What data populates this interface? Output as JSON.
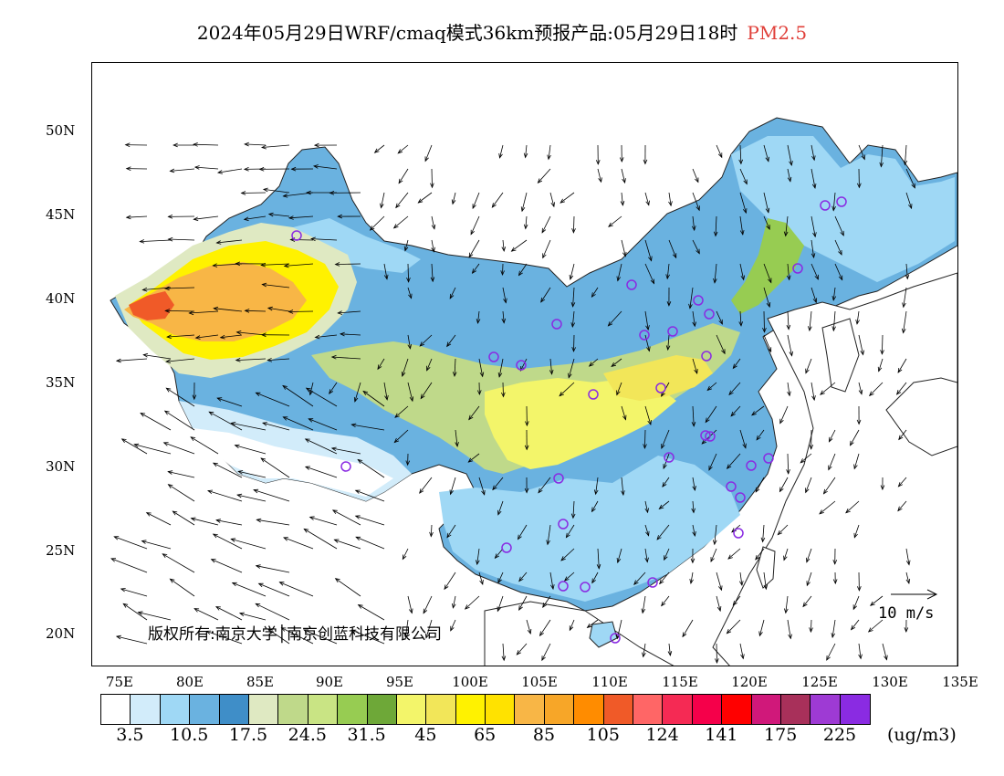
{
  "title": {
    "main": "2024年05月29日WRF/cmaq模式36km预报产品:05月29日18时",
    "variable": "PM2.5"
  },
  "axes": {
    "lat_labels": [
      "50N",
      "45N",
      "40N",
      "35N",
      "30N",
      "25N",
      "20N"
    ],
    "lon_labels": [
      "75E",
      "80E",
      "85E",
      "90E",
      "95E",
      "100E",
      "105E",
      "110E",
      "115E",
      "120E",
      "125E",
      "130E",
      "135E"
    ]
  },
  "copyright": "版权所有:南京大学│南京创蓝科技有限公司",
  "wind_reference": "10 m/s",
  "colorbar": {
    "colors": [
      "#ffffff",
      "#d2ecfa",
      "#9fd8f5",
      "#6ab2e0",
      "#3f8ec8",
      "#dfe9c2",
      "#bfd98a",
      "#c9e484",
      "#97cc52",
      "#6ea838",
      "#f3f56a",
      "#f2e659",
      "#fff200",
      "#ffe200",
      "#f8b646",
      "#f7a628",
      "#ff8c00",
      "#f05a28",
      "#ff6666",
      "#f52a54",
      "#f5004a",
      "#ff0000",
      "#d0187a",
      "#a8305a",
      "#9e3ad4",
      "#8a2be2"
    ],
    "labels": [
      "3.5",
      "10.5",
      "17.5",
      "24.5",
      "31.5",
      "45",
      "65",
      "85",
      "105",
      "124",
      "141",
      "175",
      "225"
    ],
    "unit": "(ug/m3)"
  },
  "legend_colors": {
    "low": "#9fd8f5",
    "mid": "#3f8ec8",
    "green": "#97cc52",
    "yellow": "#fff200",
    "orange": "#f8b646",
    "station": "#8a2be2"
  }
}
